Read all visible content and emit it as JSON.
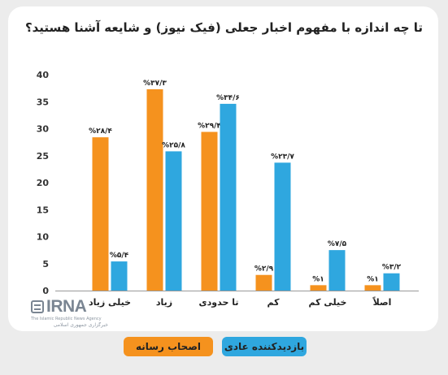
{
  "title": "تا چه اندازه با مفهوم اخبار جعلی (فیک نیوز) و شایعه آشنا هستید؟",
  "colors": {
    "media_owners": "#f5921e",
    "regular_visitors": "#2fa7df"
  },
  "legend": {
    "regular_visitors": "بازدیدکننده عادی",
    "media_owners": "اصحاب رسانه"
  },
  "logo": {
    "name": "IRNA",
    "subtitle": "The Islamic Republic News Agency",
    "subtitle_fa": "خبرگزاری جمهوری اسلامی"
  },
  "chart_data": {
    "type": "bar",
    "categories": [
      "خیلی زیاد",
      "زیاد",
      "تا حدودی",
      "کم",
      "خیلی کم",
      "اصلاً"
    ],
    "series": [
      {
        "name": "اصحاب رسانه",
        "values": [
          28.4,
          37.3,
          29.4,
          2.9,
          1,
          1
        ],
        "labels": [
          "۲۸/۴",
          "۳۷/۳",
          "۲۹/۴",
          "۲/۹",
          "۱",
          "۱"
        ]
      },
      {
        "name": "بازدیدکننده عادی",
        "values": [
          5.4,
          25.8,
          34.6,
          23.7,
          7.5,
          3.2
        ],
        "labels": [
          "۵/۴",
          "۲۵/۸",
          "۳۴/۶",
          "۲۳/۷",
          "۷/۵",
          "۳/۲"
        ]
      }
    ],
    "ylim": [
      0,
      40
    ],
    "yticks": [
      0,
      5,
      10,
      15,
      20,
      25,
      30,
      35,
      40
    ],
    "ytick_labels": [
      "0",
      "5",
      "10",
      "15",
      "20",
      "25",
      "30",
      "35",
      "40"
    ],
    "value_label_prefix": "%",
    "grid": false,
    "legend_position": "bottom"
  }
}
